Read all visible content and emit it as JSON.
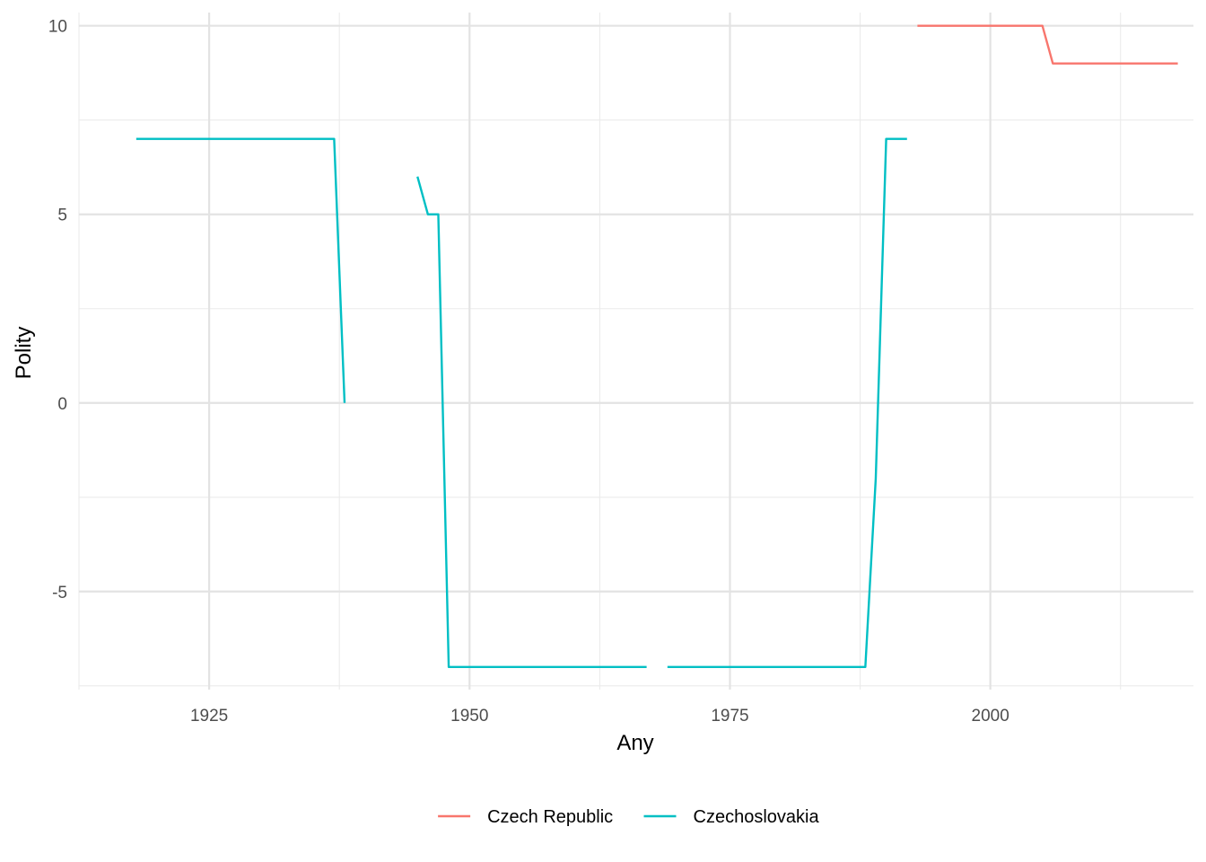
{
  "chart_data": {
    "type": "line",
    "title": "",
    "xlabel": "Any",
    "ylabel": "Polity",
    "xlim": [
      1912.5,
      2019.5
    ],
    "ylim": [
      -7.6,
      10.35
    ],
    "x_ticks": [
      1925,
      1950,
      1975,
      2000
    ],
    "y_ticks": [
      -5,
      0,
      5,
      10
    ],
    "x_tick_labels": [
      "1925",
      "1950",
      "1975",
      "2000"
    ],
    "y_tick_labels": [
      "-5",
      "0",
      "5",
      "10"
    ],
    "grid": true,
    "legend_position": "bottom",
    "series": [
      {
        "name": "Czech Republic",
        "color": "#F8766D",
        "segments": [
          [
            [
              1993,
              10
            ],
            [
              2005,
              10
            ],
            [
              2006,
              9
            ],
            [
              2018,
              9
            ]
          ]
        ]
      },
      {
        "name": "Czechoslovakia",
        "color": "#00BFC4",
        "segments": [
          [
            [
              1918,
              7
            ],
            [
              1937,
              7
            ],
            [
              1938,
              0
            ]
          ],
          [
            [
              1945,
              6
            ],
            [
              1946,
              5
            ],
            [
              1947,
              5
            ],
            [
              1948,
              -7
            ],
            [
              1967,
              -7
            ]
          ],
          [
            [
              1969,
              -7
            ],
            [
              1988,
              -7
            ],
            [
              1989,
              -2
            ],
            [
              1990,
              7
            ],
            [
              1992,
              7
            ]
          ]
        ]
      }
    ]
  }
}
